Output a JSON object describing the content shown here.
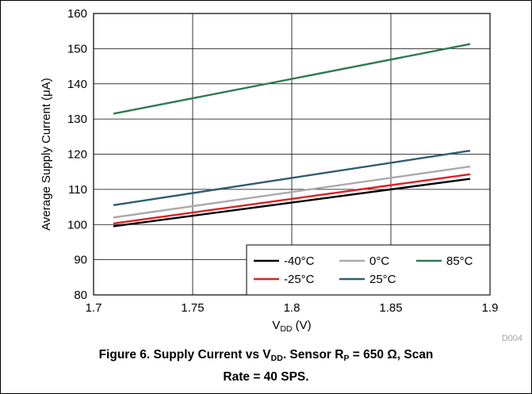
{
  "chart_data": {
    "type": "line",
    "xlabel_main": "V",
    "xlabel_sub": "DD",
    "xlabel_unit": " (V)",
    "ylabel": "Average Supply Current (μA)",
    "xlim": [
      1.7,
      1.9
    ],
    "ylim": [
      80,
      160
    ],
    "xticks": [
      1.7,
      1.75,
      1.8,
      1.85,
      1.9
    ],
    "xtick_labels": [
      "1.7",
      "1.75",
      "1.8",
      "1.85",
      "1.9"
    ],
    "yticks": [
      80,
      90,
      100,
      110,
      120,
      130,
      140,
      150,
      160
    ],
    "ytick_labels": [
      "80",
      "90",
      "100",
      "110",
      "120",
      "130",
      "140",
      "150",
      "160"
    ],
    "grid": true,
    "legend_position": "bottom-right",
    "watermark": "D004",
    "series": [
      {
        "name": "-40°C",
        "color": "#000000",
        "x": [
          1.71,
          1.89
        ],
        "y": [
          99.5,
          113.0
        ]
      },
      {
        "name": "0°C",
        "color": "#aaaaaa",
        "x": [
          1.71,
          1.89
        ],
        "y": [
          102.0,
          116.5
        ]
      },
      {
        "name": "85°C",
        "color": "#2e7a52",
        "x": [
          1.71,
          1.89
        ],
        "y": [
          131.5,
          151.3
        ]
      },
      {
        "name": "-25°C",
        "color": "#e31e24",
        "x": [
          1.71,
          1.89
        ],
        "y": [
          100.3,
          114.3
        ]
      },
      {
        "name": "25°C",
        "color": "#2f5c74",
        "x": [
          1.71,
          1.89
        ],
        "y": [
          105.5,
          121.0
        ]
      }
    ]
  },
  "caption": {
    "line1_a": "Figure 6. Supply Current vs V",
    "line1_sub1": "DD",
    "line1_b": ". Sensor R",
    "line1_sub2": "P",
    "line1_c": " = 650 Ω, Scan",
    "line2": "Rate = 40 SPS."
  }
}
